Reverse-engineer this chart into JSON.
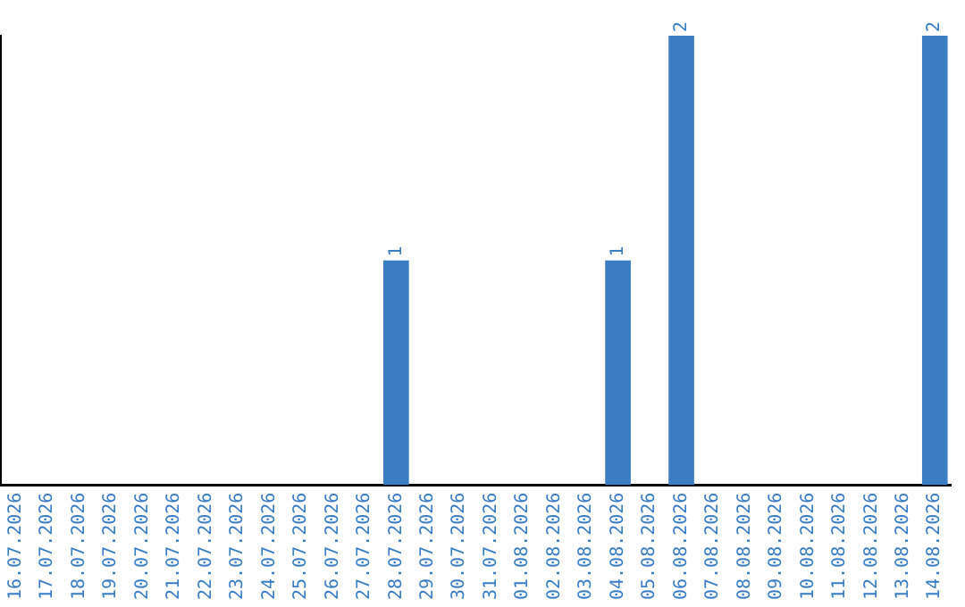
{
  "chart_data": {
    "type": "bar",
    "categories": [
      "16.07.2026",
      "17.07.2026",
      "18.07.2026",
      "19.07.2026",
      "20.07.2026",
      "21.07.2026",
      "22.07.2026",
      "23.07.2026",
      "24.07.2026",
      "25.07.2026",
      "26.07.2026",
      "27.07.2026",
      "28.07.2026",
      "29.07.2026",
      "30.07.2026",
      "31.07.2026",
      "01.08.2026",
      "02.08.2026",
      "03.08.2026",
      "04.08.2026",
      "05.08.2026",
      "06.08.2026",
      "07.08.2026",
      "08.08.2026",
      "09.08.2026",
      "10.08.2026",
      "11.08.2026",
      "12.08.2026",
      "13.08.2026",
      "14.08.2026"
    ],
    "values": [
      null,
      null,
      null,
      null,
      null,
      null,
      null,
      null,
      null,
      null,
      null,
      null,
      1,
      null,
      null,
      null,
      null,
      null,
      null,
      1,
      null,
      2,
      null,
      null,
      null,
      null,
      null,
      null,
      null,
      2
    ],
    "value_labels": [
      null,
      null,
      null,
      null,
      null,
      null,
      null,
      null,
      null,
      null,
      null,
      null,
      "1",
      null,
      null,
      null,
      null,
      null,
      null,
      "1",
      null,
      "2",
      null,
      null,
      null,
      null,
      null,
      null,
      null,
      "2"
    ],
    "color": "#3b7dc3",
    "grid": false,
    "legend": false,
    "tick_labels": "x"
  }
}
